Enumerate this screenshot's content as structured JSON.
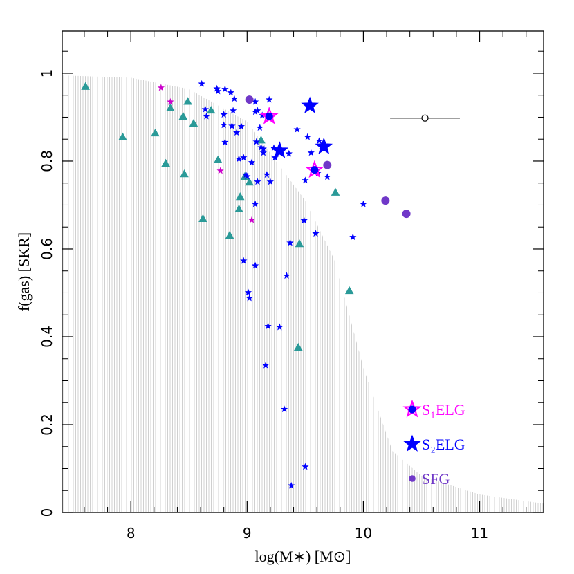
{
  "chart_data": {
    "type": "scatter",
    "x_label": "log(M∗) [M⊙]",
    "y_label": "f(gas) [SKR]",
    "xlim": [
      7.41,
      11.55
    ],
    "ylim": [
      0,
      1.096
    ],
    "xticks": [
      8,
      9,
      10,
      11
    ],
    "yticks": [
      0,
      0.2,
      0.4,
      0.6,
      0.8,
      1
    ],
    "xminorticks": [
      7.6,
      7.8,
      8.2,
      8.4,
      8.6,
      8.8,
      9.2,
      9.4,
      9.6,
      9.8,
      10.2,
      10.4,
      10.6,
      10.8,
      11.2,
      11.4
    ],
    "yminorticks": [
      0.05,
      0.1,
      0.15,
      0.25,
      0.3,
      0.35,
      0.45,
      0.5,
      0.55,
      0.65,
      0.7,
      0.75,
      0.85,
      0.9,
      0.95,
      1.05
    ],
    "legend": "lower right",
    "band": {
      "color": "#bdbdbd",
      "x": [
        7.41,
        8.0,
        8.5,
        9.0,
        9.5,
        9.75,
        10.0,
        10.25,
        10.5,
        11.0,
        11.55
      ],
      "values": [
        0.995,
        0.99,
        0.964,
        0.89,
        0.71,
        0.576,
        0.33,
        0.14,
        0.083,
        0.041,
        0.02
      ]
    },
    "error_bar": {
      "x": 10.53,
      "y": 0.898,
      "xerr": 0.3
    },
    "series": [
      {
        "marker": "triangle",
        "color": "#2a9a98",
        "size": 7,
        "x": [
          7.61,
          7.93,
          8.21,
          8.3,
          8.34,
          8.45,
          8.46,
          8.49,
          8.54,
          8.62,
          8.69,
          8.75,
          8.85,
          8.93,
          8.94,
          8.98,
          9.02,
          9.12,
          9.45,
          9.44,
          9.76,
          9.88
        ],
        "values": [
          0.969,
          0.854,
          0.863,
          0.794,
          0.92,
          0.901,
          0.77,
          0.935,
          0.885,
          0.668,
          0.915,
          0.802,
          0.63,
          0.69,
          0.718,
          0.764,
          0.751,
          0.847,
          0.611,
          0.375,
          0.728,
          0.504
        ]
      },
      {
        "marker": "star",
        "color": "#0000ff",
        "size": 4,
        "x": [
          8.61,
          8.74,
          8.75,
          8.81,
          8.86,
          8.89,
          8.88,
          8.8,
          8.87,
          8.95,
          8.91,
          8.81,
          8.8,
          8.65,
          8.64,
          8.93,
          8.97,
          8.99,
          9.0,
          9.07,
          9.09,
          9.11,
          9.07,
          9.13,
          9.08,
          9.12,
          9.19,
          9.23,
          9.2,
          9.17,
          9.09,
          9.04,
          9.07,
          9.14,
          9.14,
          9.24,
          9.36,
          9.43,
          9.52,
          9.55,
          9.62,
          9.64,
          9.69,
          9.5,
          9.61,
          9.49,
          9.59,
          9.37,
          9.34,
          8.97,
          9.07,
          9.01,
          9.02,
          9.18,
          9.28,
          9.16,
          9.32,
          9.5,
          9.38,
          9.91,
          10.0
        ],
        "values": [
          0.976,
          0.965,
          0.959,
          0.964,
          0.956,
          0.942,
          0.915,
          0.906,
          0.88,
          0.879,
          0.865,
          0.843,
          0.882,
          0.902,
          0.918,
          0.805,
          0.808,
          0.769,
          0.765,
          0.935,
          0.915,
          0.876,
          0.912,
          0.904,
          0.844,
          0.831,
          0.94,
          0.83,
          0.753,
          0.769,
          0.753,
          0.797,
          0.702,
          0.828,
          0.819,
          0.808,
          0.817,
          0.872,
          0.855,
          0.819,
          0.846,
          0.835,
          0.764,
          0.756,
          0.773,
          0.665,
          0.635,
          0.614,
          0.539,
          0.573,
          0.562,
          0.501,
          0.488,
          0.424,
          0.422,
          0.335,
          0.235,
          0.104,
          0.061,
          0.627,
          0.702
        ]
      },
      {
        "marker": "star",
        "color": "#cc00cc",
        "size": 4,
        "x": [
          8.26,
          8.34,
          8.77,
          9.04
        ],
        "values": [
          0.967,
          0.935,
          0.778,
          0.666
        ]
      },
      {
        "name": "S₁ELG",
        "marker": "star-dot",
        "color": "#ff00ff",
        "size": 11,
        "x": [
          9.19,
          9.58
        ],
        "values": [
          0.902,
          0.78
        ]
      },
      {
        "name": "S₂ELG",
        "marker": "star",
        "color": "#0000ff",
        "size": 12,
        "x": [
          9.54,
          9.28,
          9.66
        ],
        "values": [
          0.926,
          0.824,
          0.833
        ]
      },
      {
        "name": "SFG",
        "marker": "circle",
        "color": "#7038c8",
        "size": 6,
        "x": [
          9.02,
          9.69,
          10.19,
          10.37
        ],
        "values": [
          0.94,
          0.791,
          0.71,
          0.68
        ]
      }
    ]
  }
}
